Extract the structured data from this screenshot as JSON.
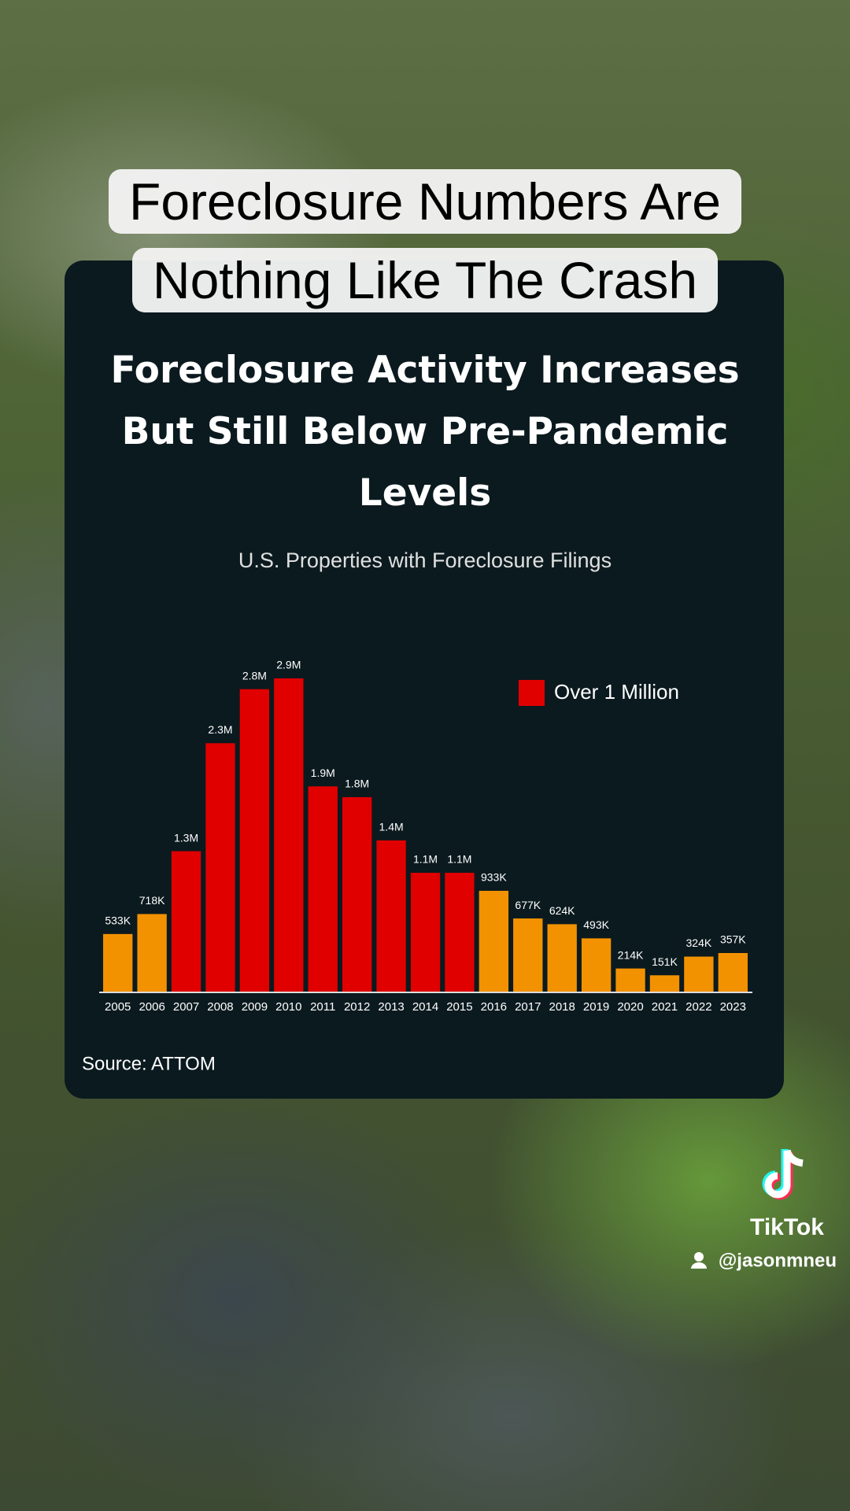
{
  "caption": "Foreclosure Numbers Are Nothing Like The Crash",
  "chart_data": {
    "type": "bar",
    "title": "Foreclosure Activity Increases But Still Below Pre-Pandemic Levels",
    "subtitle": "U.S. Properties with Foreclosure Filings",
    "categories": [
      "2005",
      "2006",
      "2007",
      "2008",
      "2009",
      "2010",
      "2011",
      "2012",
      "2013",
      "2014",
      "2015",
      "2016",
      "2017",
      "2018",
      "2019",
      "2020",
      "2021",
      "2022",
      "2023"
    ],
    "values": [
      533000,
      718000,
      1300000,
      2300000,
      2800000,
      2900000,
      1900000,
      1800000,
      1400000,
      1100000,
      1100000,
      933000,
      677000,
      624000,
      493000,
      214000,
      151000,
      324000,
      357000
    ],
    "value_labels": [
      "533K",
      "718K",
      "1.3M",
      "2.3M",
      "2.8M",
      "2.9M",
      "1.9M",
      "1.8M",
      "1.4M",
      "1.1M",
      "1.1M",
      "933K",
      "677K",
      "624K",
      "493K",
      "214K",
      "151K",
      "324K",
      "357K"
    ],
    "colors": [
      "#f39200",
      "#f39200",
      "#e00000",
      "#e00000",
      "#e00000",
      "#e00000",
      "#e00000",
      "#e00000",
      "#e00000",
      "#e00000",
      "#e00000",
      "#f39200",
      "#f39200",
      "#f39200",
      "#f39200",
      "#f39200",
      "#f39200",
      "#f39200",
      "#f39200"
    ],
    "legend": {
      "label": "Over 1 Million",
      "color": "#e00000"
    },
    "source": "Source: ATTOM"
  },
  "watermark": {
    "brand": "TikTok",
    "handle": "@jasonmneu"
  }
}
